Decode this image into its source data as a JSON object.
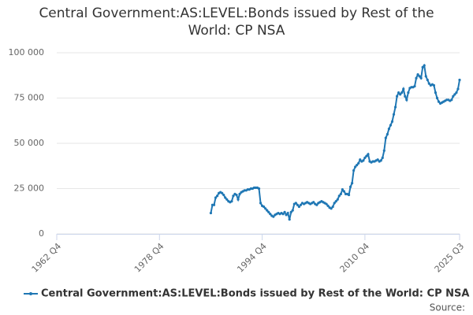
{
  "chart_data": {
    "type": "line",
    "title": "Central Government:AS:LEVEL:Bonds issued by Rest of the World: CP NSA",
    "x": [
      "1986 Q4",
      "1987 Q1",
      "1987 Q2",
      "1987 Q3",
      "1987 Q4",
      "1988 Q1",
      "1988 Q2",
      "1988 Q3",
      "1988 Q4",
      "1989 Q1",
      "1989 Q2",
      "1989 Q3",
      "1989 Q4",
      "1990 Q1",
      "1990 Q2",
      "1990 Q3",
      "1990 Q4",
      "1991 Q1",
      "1991 Q2",
      "1991 Q3",
      "1991 Q4",
      "1992 Q1",
      "1992 Q2",
      "1992 Q3",
      "1992 Q4",
      "1993 Q1",
      "1993 Q2",
      "1993 Q3",
      "1993 Q4",
      "1994 Q1",
      "1994 Q2",
      "1994 Q3",
      "1994 Q4",
      "1995 Q1",
      "1995 Q2",
      "1995 Q3",
      "1995 Q4",
      "1996 Q1",
      "1996 Q2",
      "1996 Q3",
      "1996 Q4",
      "1997 Q1",
      "1997 Q2",
      "1997 Q3",
      "1997 Q4",
      "1998 Q1",
      "1998 Q2",
      "1998 Q3",
      "1998 Q4",
      "1999 Q1",
      "1999 Q2",
      "1999 Q3",
      "1999 Q4",
      "2000 Q1",
      "2000 Q2",
      "2000 Q3",
      "2000 Q4",
      "2001 Q1",
      "2001 Q2",
      "2001 Q3",
      "2001 Q4",
      "2002 Q1",
      "2002 Q2",
      "2002 Q3",
      "2002 Q4",
      "2003 Q1",
      "2003 Q2",
      "2003 Q3",
      "2003 Q4",
      "2004 Q1",
      "2004 Q2",
      "2004 Q3",
      "2004 Q4",
      "2005 Q1",
      "2005 Q2",
      "2005 Q3",
      "2005 Q4",
      "2006 Q1",
      "2006 Q2",
      "2006 Q3",
      "2006 Q4",
      "2007 Q1",
      "2007 Q2",
      "2007 Q3",
      "2007 Q4",
      "2008 Q1",
      "2008 Q2",
      "2008 Q3",
      "2008 Q4",
      "2009 Q1",
      "2009 Q2",
      "2009 Q3",
      "2009 Q4",
      "2010 Q1",
      "2010 Q2",
      "2010 Q3",
      "2010 Q4",
      "2011 Q1",
      "2011 Q2",
      "2011 Q3",
      "2011 Q4",
      "2012 Q1",
      "2012 Q2",
      "2012 Q3",
      "2012 Q4",
      "2013 Q1",
      "2013 Q2",
      "2013 Q3",
      "2013 Q4",
      "2014 Q1",
      "2014 Q2",
      "2014 Q3",
      "2014 Q4",
      "2015 Q1",
      "2015 Q2",
      "2015 Q3",
      "2015 Q4",
      "2016 Q1",
      "2016 Q2",
      "2016 Q3",
      "2016 Q4",
      "2017 Q1",
      "2017 Q2",
      "2017 Q3",
      "2017 Q4",
      "2018 Q1",
      "2018 Q2",
      "2018 Q3",
      "2018 Q4",
      "2019 Q1",
      "2019 Q2",
      "2019 Q3",
      "2019 Q4",
      "2020 Q1",
      "2020 Q2",
      "2020 Q3",
      "2020 Q4",
      "2021 Q1",
      "2021 Q2",
      "2021 Q3",
      "2021 Q4",
      "2022 Q1",
      "2022 Q2",
      "2022 Q3",
      "2022 Q4",
      "2023 Q1",
      "2023 Q2",
      "2023 Q3",
      "2023 Q4",
      "2024 Q1",
      "2024 Q2",
      "2024 Q3",
      "2024 Q4",
      "2025 Q1",
      "2025 Q2",
      "2025 Q3"
    ],
    "series": [
      {
        "name": "Central Government:AS:LEVEL:Bonds issued by Rest of the World: CP NSA",
        "color": "#1f77b4",
        "values": [
          11500,
          16000,
          16000,
          20000,
          21000,
          22500,
          23000,
          22500,
          21500,
          20000,
          19000,
          18000,
          17500,
          18000,
          21000,
          22000,
          21500,
          19000,
          22000,
          23000,
          23500,
          24000,
          24000,
          24500,
          24500,
          25000,
          25000,
          25500,
          25500,
          25500,
          25000,
          17000,
          15500,
          15000,
          14000,
          13000,
          12000,
          11000,
          10000,
          9500,
          10500,
          11000,
          11500,
          11000,
          11500,
          11000,
          12000,
          10500,
          11500,
          8000,
          12000,
          13000,
          16500,
          17000,
          16000,
          15000,
          16000,
          17000,
          16500,
          17000,
          17500,
          17000,
          16500,
          17000,
          17500,
          16500,
          16000,
          17000,
          17500,
          18000,
          17500,
          17000,
          16500,
          15500,
          14500,
          14000,
          15000,
          17000,
          18000,
          19000,
          21000,
          22000,
          24500,
          23500,
          22000,
          22000,
          21500,
          26000,
          28000,
          35000,
          37000,
          38000,
          39000,
          41000,
          40000,
          40500,
          42000,
          43000,
          44000,
          40000,
          39500,
          40000,
          40000,
          40500,
          41000,
          40000,
          40500,
          42000,
          46000,
          53000,
          55000,
          58000,
          60000,
          62000,
          66000,
          70000,
          76000,
          78000,
          77000,
          78000,
          80000,
          76000,
          74000,
          78000,
          80500,
          81000,
          81000,
          81500,
          86000,
          88000,
          87000,
          86000,
          92000,
          93000,
          87000,
          85000,
          83000,
          82000,
          82500,
          82000,
          78000,
          75000,
          73000,
          72000,
          72500,
          73000,
          73500,
          74000,
          74000,
          73500,
          74000,
          76000,
          77000,
          78000,
          80000,
          85000
        ]
      }
    ],
    "xlim": [
      "1962 Q4",
      "2025 Q3"
    ],
    "xticks": [
      "1962 Q4",
      "1978 Q4",
      "1994 Q4",
      "2010 Q4",
      "2025 Q3"
    ],
    "ylim": [
      0,
      100000
    ],
    "yticks": [
      0,
      {
        "value": 25000,
        "label": "25 000"
      },
      {
        "value": 50000,
        "label": "50 000"
      },
      {
        "value": 75000,
        "label": "75 000"
      },
      {
        "value": 100000,
        "label": "100 000"
      }
    ],
    "grid": true,
    "legend": "bottom",
    "source": "Source:"
  }
}
